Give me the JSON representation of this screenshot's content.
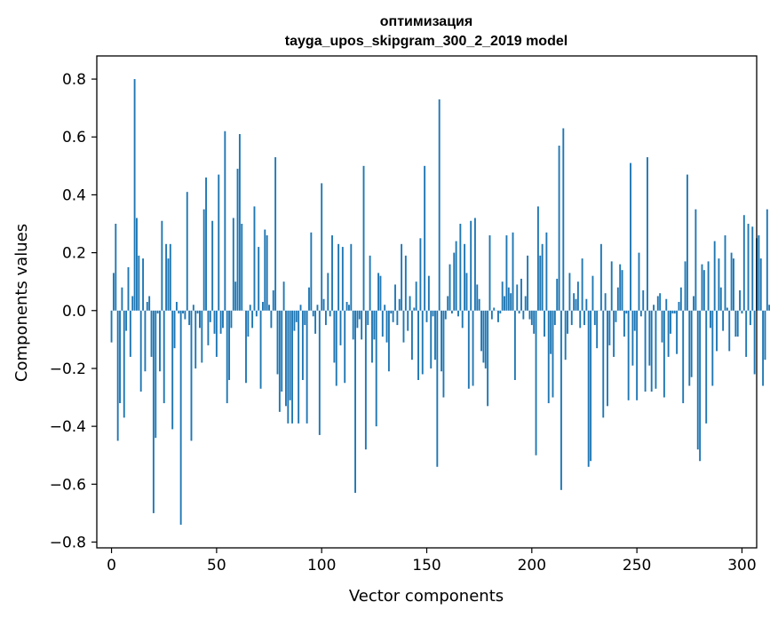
{
  "chart_data": {
    "type": "bar",
    "title": "оптимизация",
    "subtitle": "tayga_upos_skipgram_300_2_2019 model",
    "xlabel": "Vector components",
    "ylabel": "Components values",
    "xlim": [
      -7,
      307
    ],
    "ylim": [
      -0.82,
      0.88
    ],
    "xticks": [
      0,
      50,
      100,
      150,
      200,
      250,
      300
    ],
    "yticks": [
      -0.8,
      -0.6,
      -0.4,
      -0.2,
      0.0,
      0.2,
      0.4,
      0.6,
      0.8
    ],
    "ytick_labels": [
      "−0.8",
      "−0.6",
      "−0.4",
      "−0.2",
      "0.0",
      "0.2",
      "0.4",
      "0.6",
      "0.8"
    ],
    "bar_color": "#1f77b4",
    "values": [
      -0.11,
      0.13,
      0.3,
      -0.45,
      -0.32,
      0.08,
      -0.37,
      -0.07,
      0.15,
      -0.16,
      0.05,
      0.8,
      0.32,
      0.19,
      -0.28,
      0.18,
      -0.21,
      0.03,
      0.05,
      -0.16,
      -0.7,
      -0.44,
      -0.01,
      -0.21,
      0.31,
      -0.32,
      0.23,
      0.18,
      0.23,
      -0.41,
      -0.13,
      0.03,
      -0.01,
      -0.74,
      -0.01,
      -0.03,
      0.41,
      -0.05,
      -0.45,
      0.02,
      -0.2,
      -0.01,
      -0.06,
      -0.18,
      0.35,
      0.46,
      -0.12,
      -0.04,
      0.31,
      -0.08,
      -0.16,
      0.47,
      -0.08,
      -0.06,
      0.62,
      -0.32,
      -0.24,
      -0.06,
      0.32,
      0.1,
      0.49,
      0.61,
      0.3,
      0.0,
      -0.25,
      -0.09,
      0.02,
      -0.06,
      0.36,
      -0.02,
      0.22,
      -0.27,
      0.03,
      0.28,
      0.26,
      0.02,
      -0.06,
      0.07,
      0.53,
      -0.22,
      -0.35,
      -0.28,
      0.1,
      -0.33,
      -0.39,
      -0.31,
      -0.39,
      -0.07,
      -0.04,
      -0.39,
      0.02,
      -0.24,
      -0.05,
      -0.39,
      0.08,
      0.27,
      -0.02,
      -0.08,
      0.02,
      -0.43,
      0.44,
      0.04,
      -0.05,
      0.13,
      -0.02,
      0.26,
      -0.18,
      -0.26,
      0.23,
      -0.12,
      0.22,
      -0.25,
      0.03,
      0.02,
      0.23,
      -0.1,
      -0.63,
      -0.06,
      -0.03,
      -0.1,
      0.5,
      -0.48,
      -0.05,
      0.19,
      -0.18,
      -0.1,
      -0.4,
      0.13,
      0.12,
      -0.09,
      0.02,
      -0.11,
      -0.21,
      -0.01,
      -0.04,
      0.09,
      -0.05,
      0.04,
      0.23,
      -0.11,
      0.19,
      -0.07,
      0.05,
      -0.17,
      0.01,
      0.1,
      -0.24,
      0.25,
      -0.22,
      0.5,
      -0.04,
      0.12,
      -0.2,
      -0.02,
      -0.17,
      -0.54,
      0.73,
      -0.21,
      -0.3,
      -0.03,
      0.05,
      0.16,
      -0.01,
      0.2,
      0.24,
      -0.02,
      0.3,
      -0.06,
      0.23,
      0.13,
      -0.27,
      0.31,
      -0.26,
      0.32,
      0.09,
      0.04,
      -0.14,
      -0.18,
      -0.2,
      -0.33,
      0.26,
      -0.03,
      0.01,
      0.0,
      -0.04,
      -0.01,
      0.1,
      0.05,
      0.26,
      0.08,
      0.06,
      0.27,
      -0.24,
      0.09,
      -0.01,
      0.11,
      -0.03,
      0.05,
      0.19,
      -0.03,
      -0.05,
      -0.08,
      -0.5,
      0.36,
      0.19,
      0.23,
      -0.09,
      0.27,
      -0.32,
      -0.15,
      -0.3,
      -0.05,
      0.11,
      0.57,
      -0.62,
      0.63,
      -0.17,
      -0.08,
      0.13,
      -0.05,
      0.06,
      0.04,
      0.1,
      -0.06,
      0.18,
      -0.05,
      0.04,
      -0.54,
      -0.52,
      0.12,
      -0.05,
      -0.13,
      0.0,
      0.23,
      -0.37,
      0.06,
      -0.33,
      -0.12,
      0.17,
      -0.16,
      -0.04,
      0.08,
      0.16,
      0.14,
      -0.09,
      -0.01,
      -0.31,
      0.51,
      -0.19,
      -0.07,
      -0.31,
      0.2,
      -0.02,
      0.07,
      -0.28,
      0.53,
      -0.19,
      -0.28,
      0.02,
      -0.27,
      0.05,
      0.06,
      -0.11,
      -0.3,
      0.04,
      -0.16,
      -0.08,
      -0.01,
      -0.01,
      -0.15,
      0.03,
      0.08,
      -0.32,
      0.17,
      0.47,
      -0.26,
      -0.23,
      0.05,
      0.35,
      -0.48,
      -0.52,
      0.16,
      0.14,
      -0.39,
      0.17,
      -0.06,
      -0.26,
      0.24,
      -0.14,
      0.18,
      0.08,
      -0.07,
      0.26,
      0.01,
      -0.14,
      0.2,
      0.18,
      -0.09,
      -0.09,
      0.07,
      -0.01,
      0.33,
      -0.16,
      0.3,
      -0.05,
      0.29,
      -0.22,
      0.25,
      0.26,
      0.18,
      -0.26,
      -0.17,
      0.35,
      0.02
    ]
  }
}
